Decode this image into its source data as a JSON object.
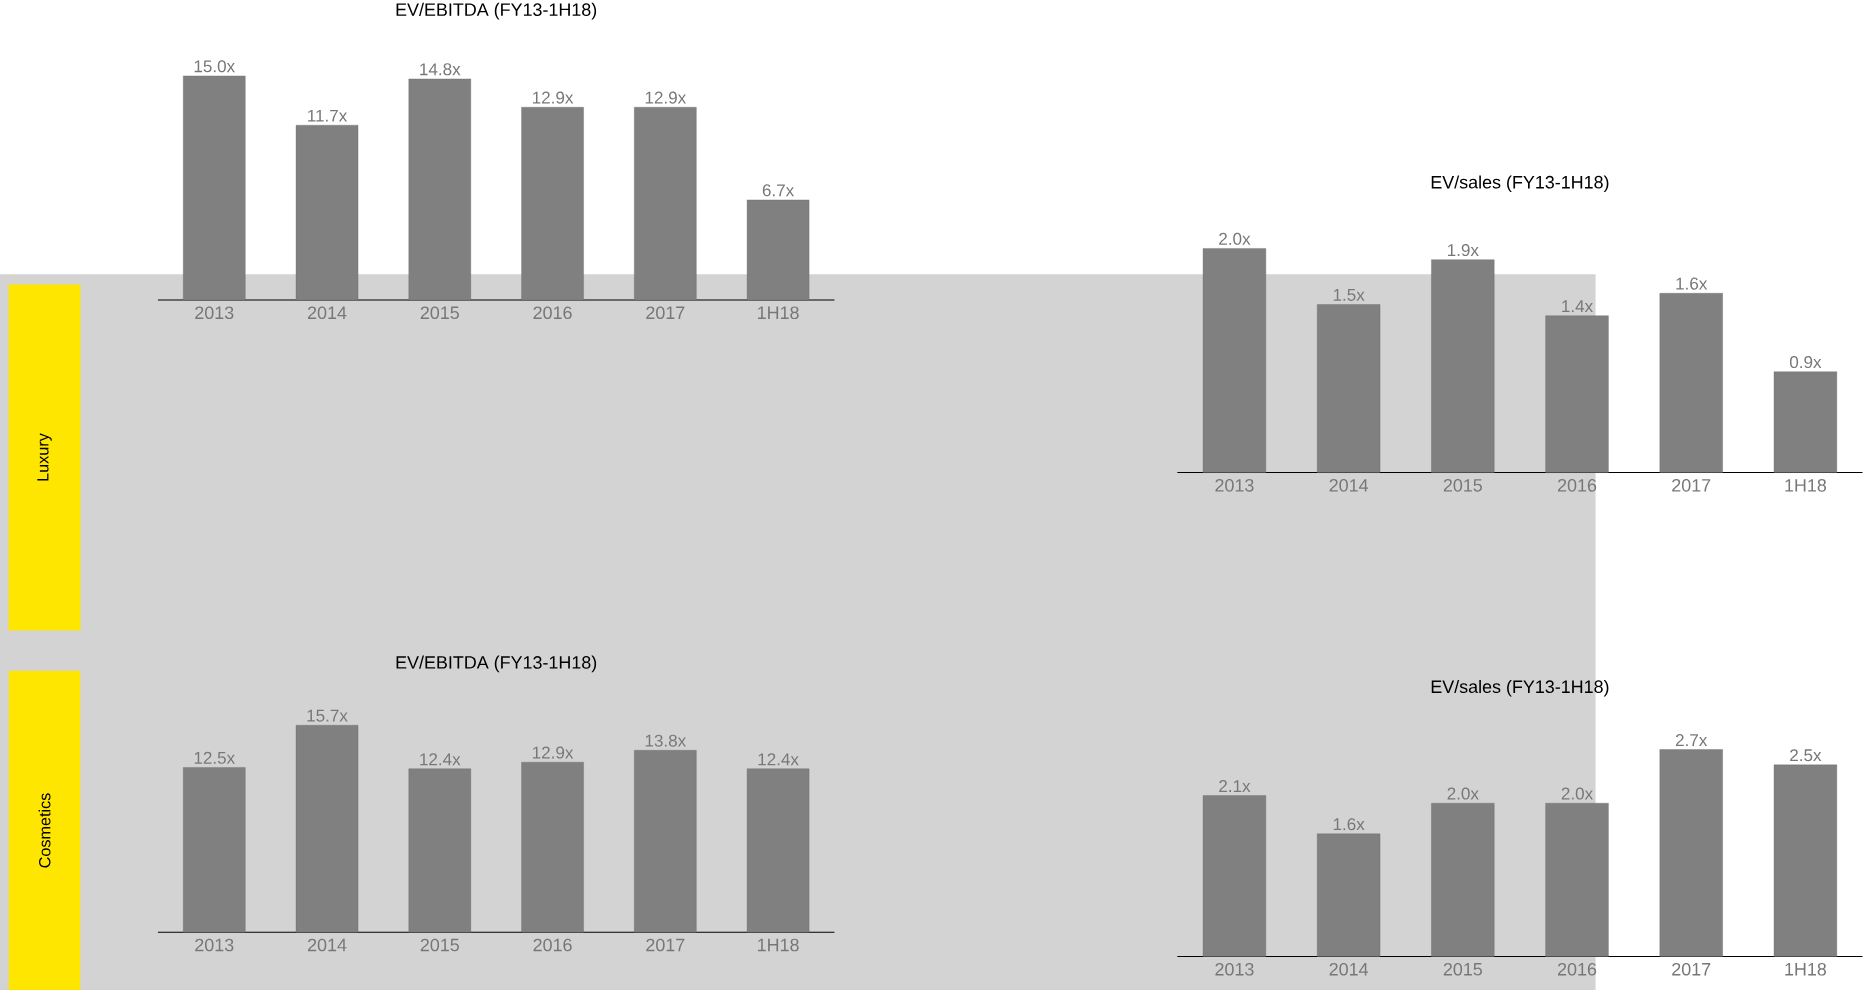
{
  "chart_data": [
    {
      "type": "bar",
      "title": "EV/EBITDA (FY13-1H18)",
      "categories": [
        "2013",
        "2014",
        "2015",
        "2016",
        "2017",
        "1H18"
      ],
      "values": [
        15.0,
        11.7,
        14.8,
        12.9,
        12.9,
        6.7
      ],
      "color": "#808080",
      "value_labels": [
        "15.0x",
        "11.7x",
        "14.8x",
        "12.9x",
        "12.9x",
        "6.7x"
      ],
      "annotations": [
        "Luxury"
      ]
    },
    {
      "type": "bar",
      "title": "EV/sales (FY13-1H18)",
      "categories": [
        "2013",
        "2014",
        "2015",
        "2016",
        "2017",
        "1H18"
      ],
      "values": [
        2.0,
        1.5,
        1.9,
        1.4,
        1.6,
        0.9
      ],
      "color": "#808080",
      "value_labels": [
        "2.0x",
        "1.5x",
        "1.9x",
        "1.4x",
        "1.6x",
        "0.9x"
      ]
    },
    {
      "type": "bar",
      "title": "EV/EBITDA (FY13-1H18)",
      "categories": [
        "2013",
        "2014",
        "2015",
        "2016",
        "2017",
        "1H18"
      ],
      "values": [
        12.5,
        15.7,
        12.4,
        12.9,
        13.8,
        12.4
      ],
      "color": "#808080",
      "value_labels": [
        "12.5x",
        "15.7x",
        "12.4x",
        "12.9x",
        "13.8x",
        "12.4x"
      ],
      "annotations": [
        "Cosmetics"
      ]
    },
    {
      "type": "bar",
      "title": "EV/sales (FY13-1H18)",
      "categories": [
        "2013",
        "2014",
        "2015",
        "2016",
        "2017",
        "1H18"
      ],
      "values": [
        2.1,
        1.6,
        2.0,
        2.0,
        2.7,
        2.5
      ],
      "color": "#808080",
      "value_labels": [
        "2.1x",
        "1.6x",
        "2.0x",
        "2.0x",
        "2.7x",
        "2.5x"
      ]
    }
  ]
}
